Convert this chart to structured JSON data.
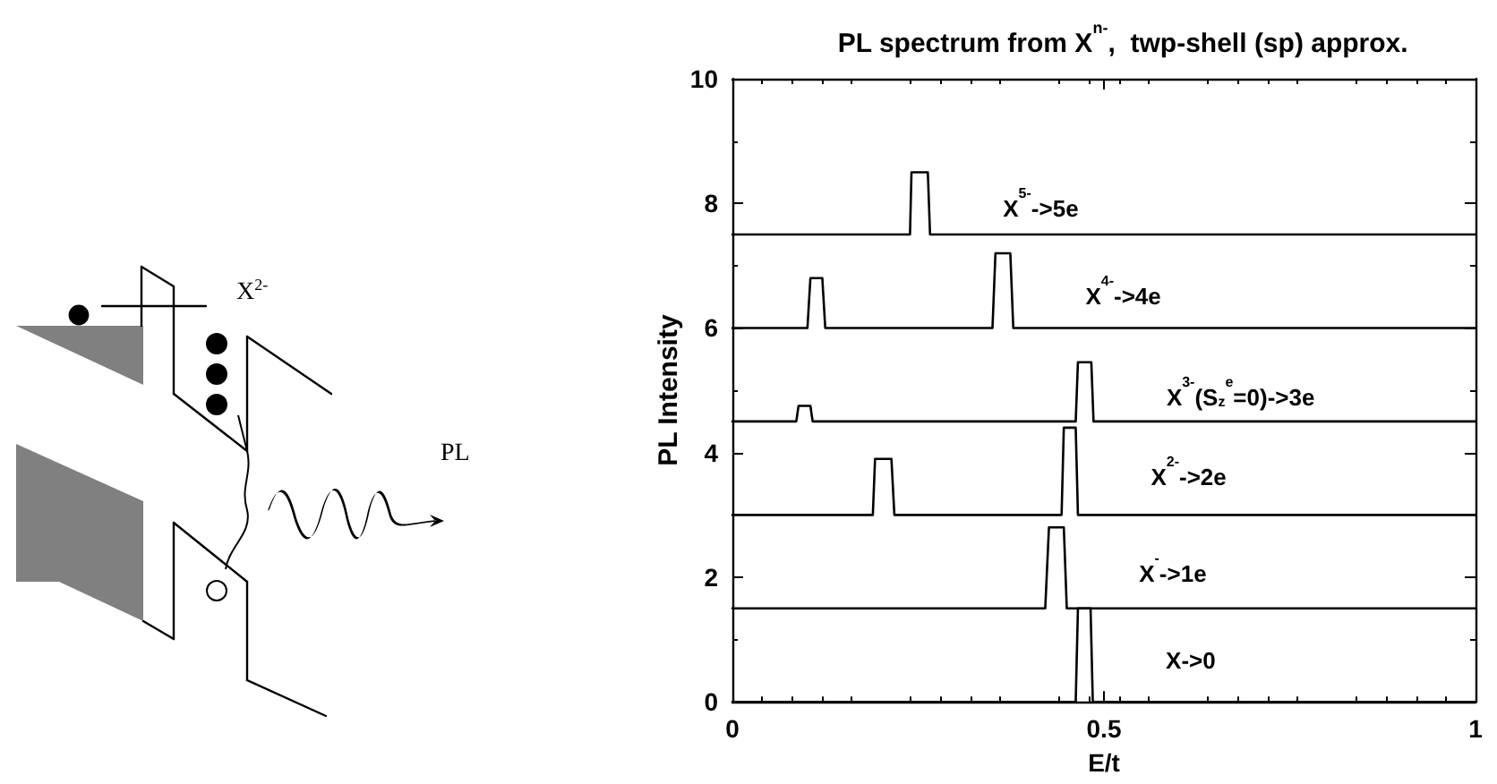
{
  "chart_data": {
    "type": "line",
    "title": "PL spectrum from X$^{n-}$,  twp-shell (sp) approx.",
    "xlabel": "E/t",
    "ylabel": "PL Intensity",
    "annotations": [
      "X$^{2-}$",
      "PL"
    ],
    "xlim": [
      0,
      1
    ],
    "xticks": [
      0,
      0.5,
      1
    ],
    "ylim": [
      0,
      10
    ],
    "yticks": [
      0,
      2,
      4,
      6,
      8,
      10
    ],
    "grid": false,
    "legend": false,
    "marker": "none",
    "line_style": "solid",
    "series": [
      {
        "name": "X->0",
        "color": "#000000",
        "x": [
          0,
          0.462,
          0.465,
          0.482,
          0.485,
          1
        ],
        "values": [
          0,
          0,
          1.5,
          1.5,
          0,
          0
        ]
      },
      {
        "name": "X$^{-}$->1e",
        "color": "#000000",
        "x": [
          0,
          0.421,
          0.426,
          0.446,
          0.45,
          1
        ],
        "values": [
          1.5,
          1.5,
          2.8,
          2.8,
          1.5,
          1.5
        ]
      },
      {
        "name": "X$^{2-}$->2e",
        "color": "#000000",
        "x": [
          0,
          0.189,
          0.192,
          0.214,
          0.218,
          0.443,
          0.446,
          0.462,
          0.465,
          1
        ],
        "values": [
          3,
          3,
          3.9,
          3.9,
          3,
          3,
          4.4,
          4.4,
          3,
          3
        ]
      },
      {
        "name": "X$^{3-}$(S$_{z}$$^{e}$=0)->3e",
        "color": "#000000",
        "x": [
          0,
          0.086,
          0.089,
          0.105,
          0.108,
          0.462,
          0.465,
          0.483,
          0.486,
          1
        ],
        "values": [
          4.5,
          4.5,
          4.75,
          4.75,
          4.5,
          4.5,
          5.45,
          5.45,
          4.5,
          4.5
        ]
      },
      {
        "name": "X$^{4-}$->4e",
        "color": "#000000",
        "x": [
          0,
          0.101,
          0.105,
          0.121,
          0.125,
          0.35,
          0.354,
          0.374,
          0.378,
          1
        ],
        "values": [
          6,
          6,
          6.8,
          6.8,
          6,
          6,
          7.2,
          7.2,
          6,
          6
        ]
      },
      {
        "name": "X$^{5-}$->5e",
        "color": "#000000",
        "x": [
          0,
          0.239,
          0.241,
          0.263,
          0.266,
          1
        ],
        "values": [
          7.5,
          7.5,
          8.5,
          8.5,
          7.5,
          7.5
        ]
      }
    ]
  }
}
